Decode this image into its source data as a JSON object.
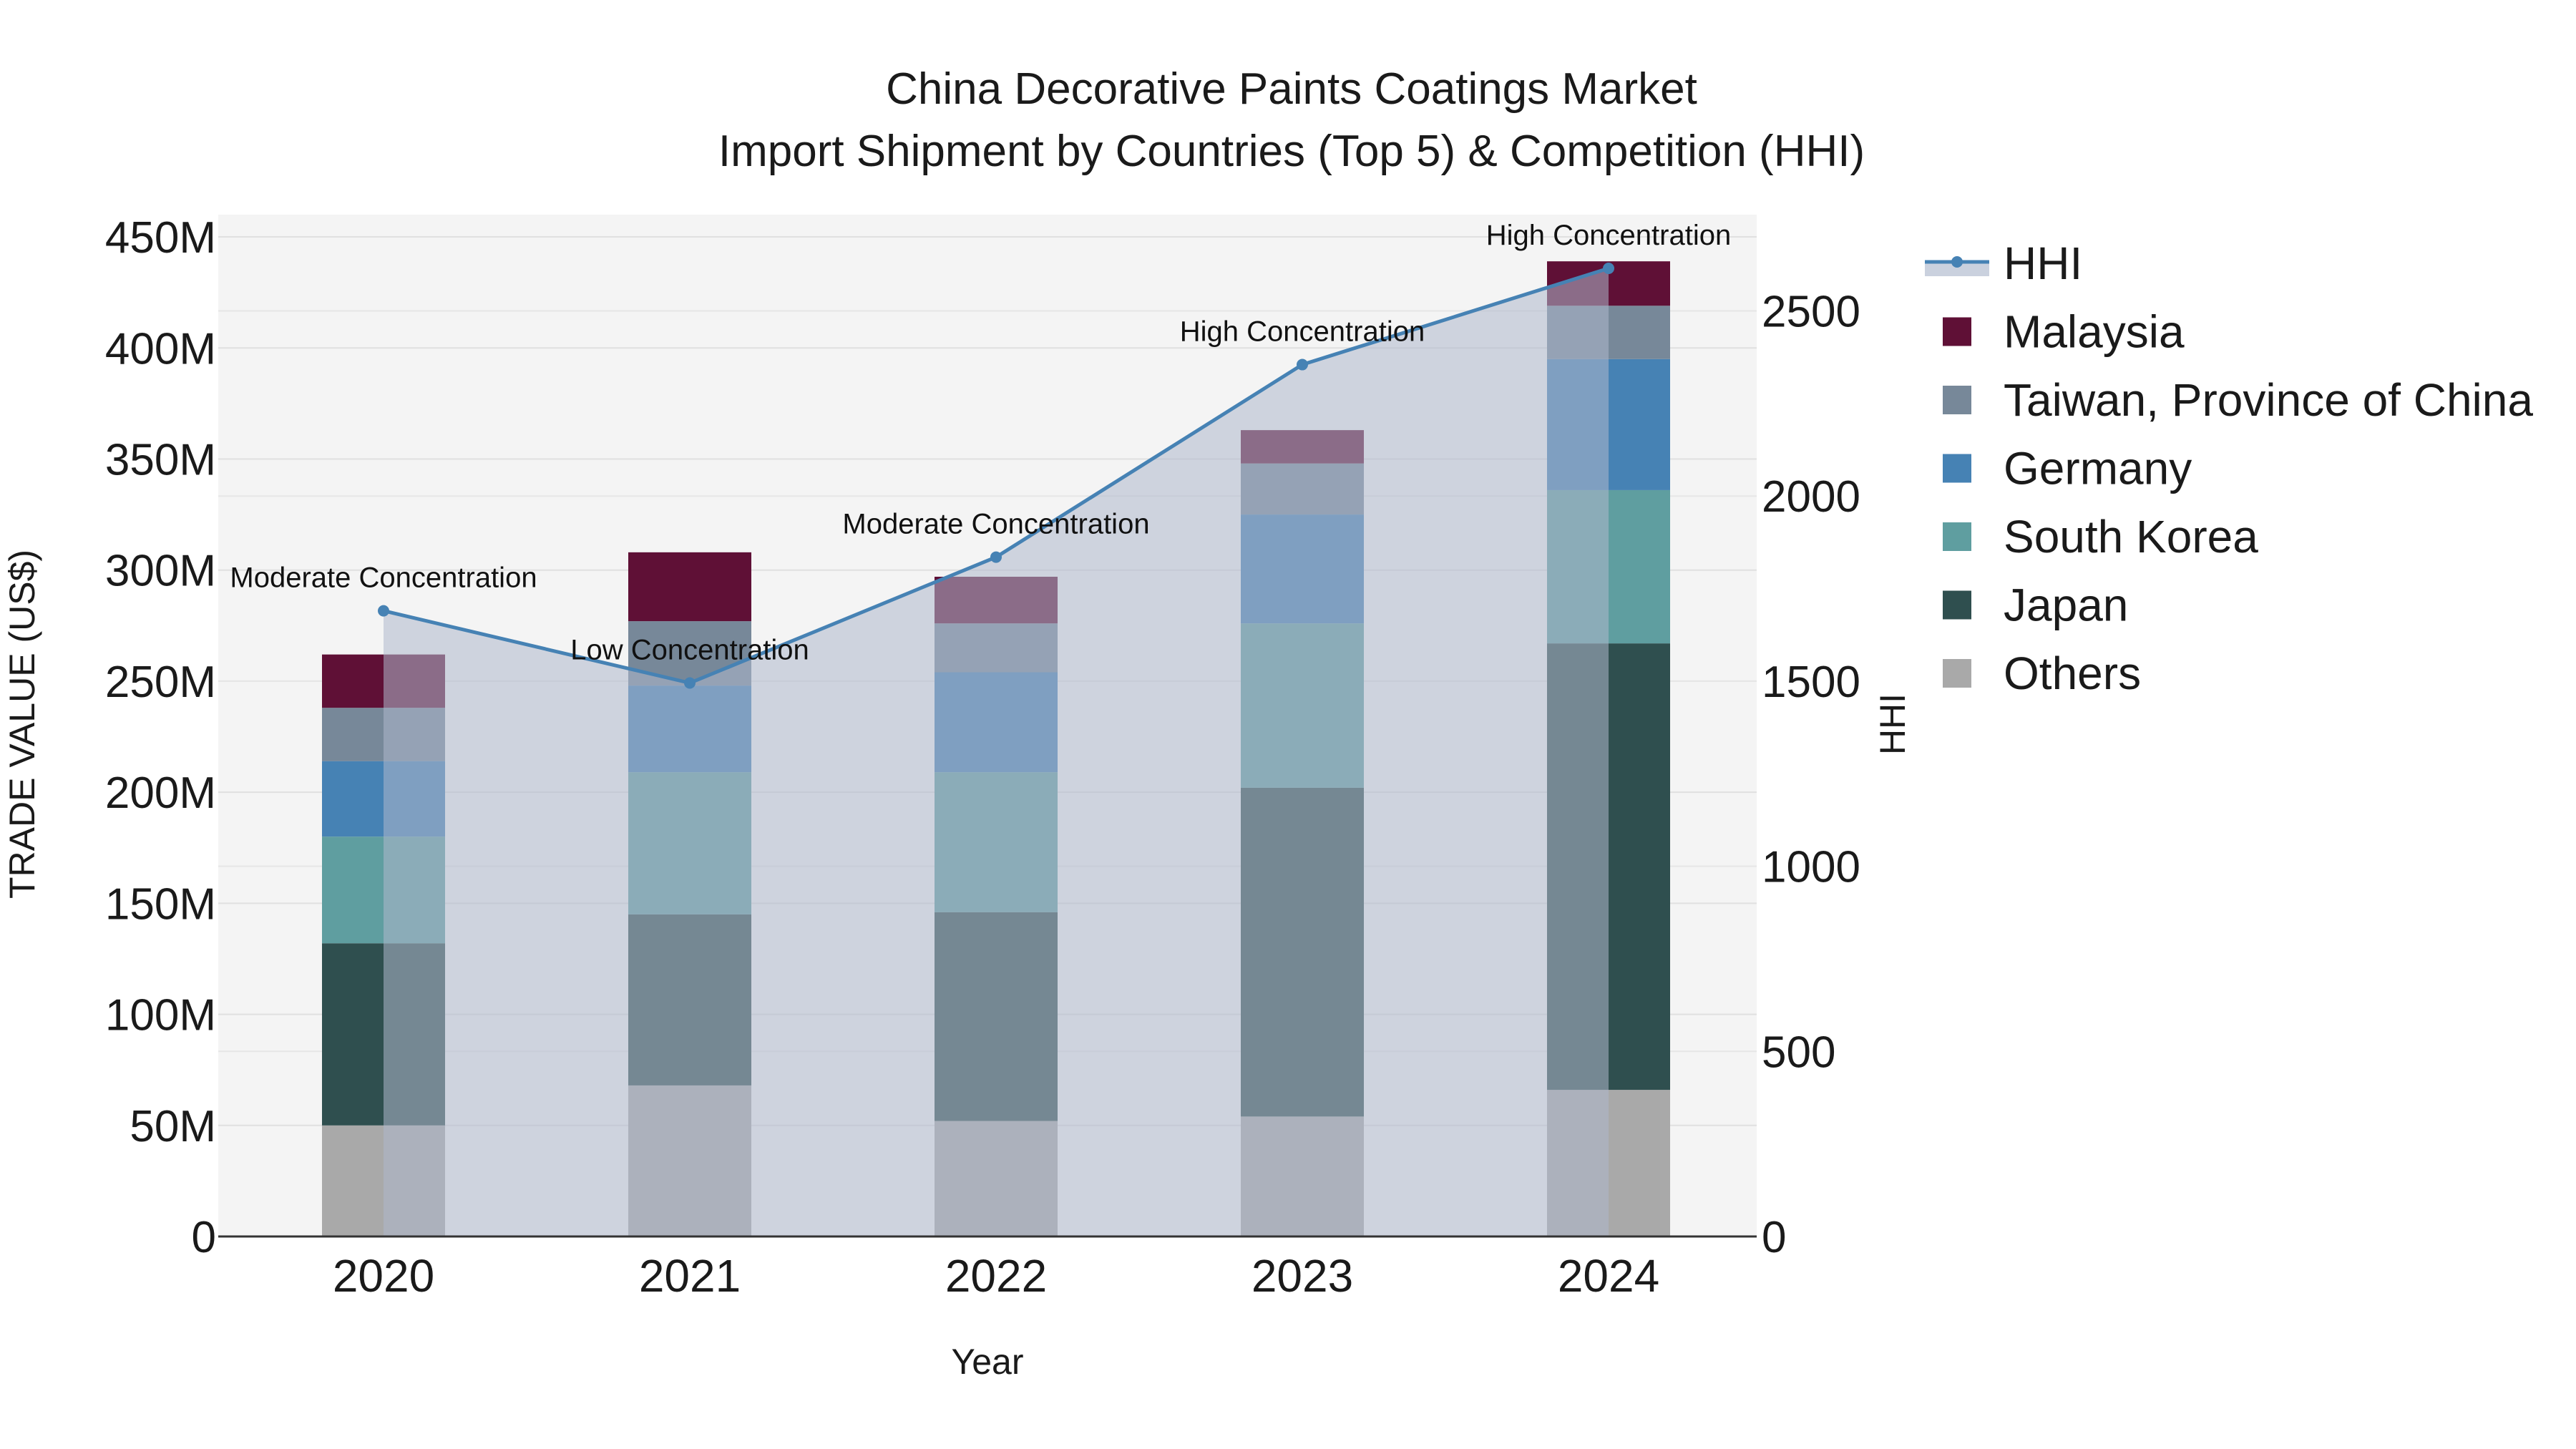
{
  "chart_data": {
    "type": "bar",
    "title_line1": "China Decorative Paints Coatings Market",
    "title_line2": "Import Shipment by Countries (Top 5) & Competition (HHI)",
    "xlabel": "Year",
    "ylabel": "TRADE VALUE (US$)",
    "y2label": "HHI",
    "categories": [
      "2020",
      "2021",
      "2022",
      "2023",
      "2024"
    ],
    "ylim": [
      0,
      460000000
    ],
    "y_ticks": [
      0,
      50000000,
      100000000,
      150000000,
      200000000,
      250000000,
      300000000,
      350000000,
      400000000,
      450000000
    ],
    "y_tick_labels": [
      "0",
      "50M",
      "100M",
      "150M",
      "200M",
      "250M",
      "300M",
      "350M",
      "400M",
      "450M"
    ],
    "y2lim": [
      0,
      2760
    ],
    "y2_ticks": [
      0,
      500,
      1000,
      1500,
      2000,
      2500
    ],
    "y2_tick_labels": [
      "0",
      "500",
      "1000",
      "1500",
      "2000",
      "2500"
    ],
    "series": [
      {
        "name": "Others",
        "color": "#a9a9a9",
        "values": [
          50000000,
          68000000,
          52000000,
          54000000,
          66000000
        ]
      },
      {
        "name": "Japan",
        "color": "#2f4f4f",
        "values": [
          82000000,
          77000000,
          94000000,
          148000000,
          201000000
        ]
      },
      {
        "name": "South Korea",
        "color": "#5f9ea0",
        "values": [
          48000000,
          64000000,
          63000000,
          74000000,
          69000000
        ]
      },
      {
        "name": "Germany",
        "color": "#4682b4",
        "values": [
          34000000,
          39000000,
          45000000,
          49000000,
          59000000
        ]
      },
      {
        "name": "Taiwan, Province of China",
        "color": "#778899",
        "values": [
          24000000,
          29000000,
          22000000,
          23000000,
          24000000
        ]
      },
      {
        "name": "Malaysia",
        "color": "#5f1036",
        "values": [
          24000000,
          31000000,
          21000000,
          15000000,
          20000000
        ]
      }
    ],
    "hhi": {
      "name": "HHI",
      "color": "#4682b4",
      "values": [
        1690,
        1495,
        1835,
        2355,
        2615
      ],
      "labels": [
        "Moderate Concentration",
        "Low Concentration",
        "Moderate Concentration",
        "High Concentration",
        "High Concentration"
      ]
    },
    "legend_order": [
      "HHI",
      "Malaysia",
      "Taiwan, Province of China",
      "Germany",
      "South Korea",
      "Japan",
      "Others"
    ],
    "legend_position": "right",
    "grid": true
  }
}
